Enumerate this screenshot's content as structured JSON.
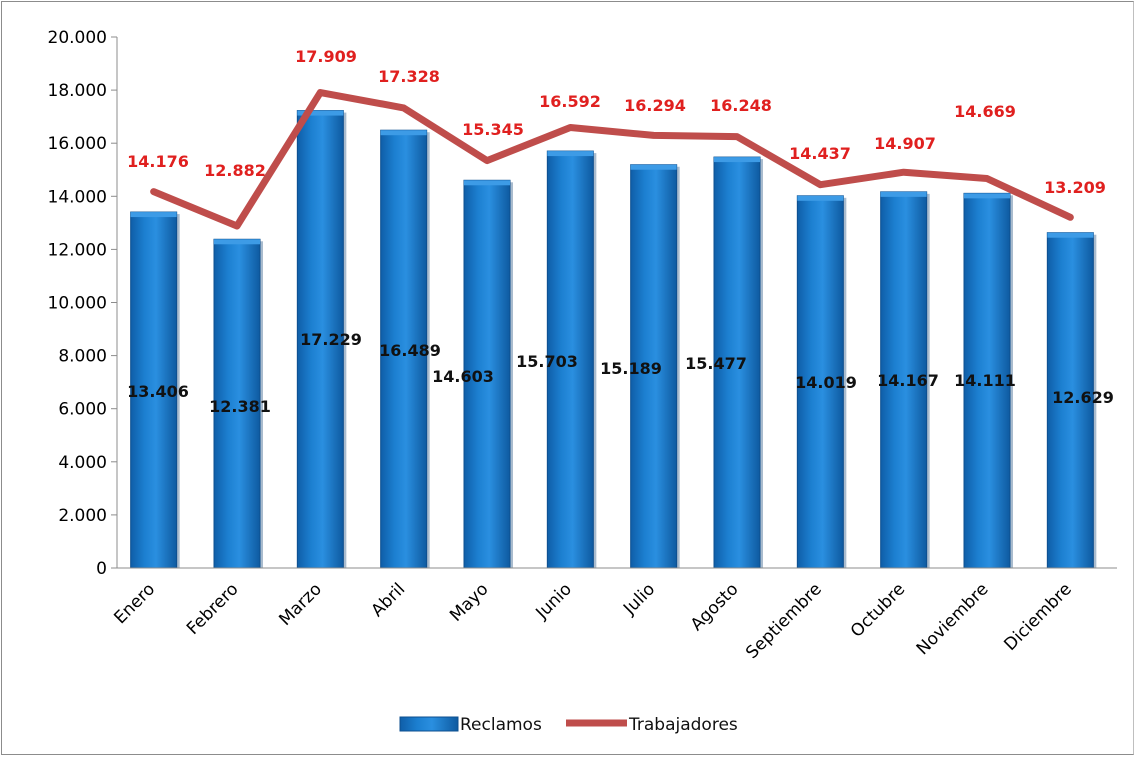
{
  "chart_data": {
    "type": "bar",
    "categories": [
      "Enero",
      "Febrero",
      "Marzo",
      "Abril",
      "Mayo",
      "Junio",
      "Julio",
      "Agosto",
      "Septiembre",
      "Octubre",
      "Noviembre",
      "Diciembre"
    ],
    "series": [
      {
        "name": "Reclamos",
        "type": "bar",
        "values": [
          13406,
          12381,
          17229,
          16489,
          14603,
          15703,
          15189,
          15477,
          14019,
          14167,
          14111,
          12629
        ],
        "labels": [
          "13.406",
          "12.381",
          "17.229",
          "16.489",
          "14.603",
          "15.703",
          "15.189",
          "15.477",
          "14.019",
          "14.167",
          "14.111",
          "12.629"
        ]
      },
      {
        "name": "Trabajadores",
        "type": "line",
        "values": [
          14176,
          12882,
          17909,
          17328,
          15345,
          16592,
          16294,
          16248,
          14437,
          14907,
          14669,
          13209
        ],
        "labels": [
          "14.176",
          "12.882",
          "17.909",
          "17.328",
          "15.345",
          "16.592",
          "16.294",
          "16.248",
          "14.437",
          "14.907",
          "14.669",
          "13.209"
        ]
      }
    ],
    "ylim": [
      0,
      20000
    ],
    "yticks": [
      0,
      2000,
      4000,
      6000,
      8000,
      10000,
      12000,
      14000,
      16000,
      18000,
      20000
    ],
    "ytick_labels": [
      "0",
      "2.000",
      "4.000",
      "6.000",
      "8.000",
      "10.000",
      "12.000",
      "14.000",
      "16.000",
      "18.000",
      "20.000"
    ],
    "legend_position": "bottom",
    "grid": false,
    "colors": {
      "bar": "#1a75c4",
      "bar_dark": "#0d4f8f",
      "line": "#bf4d4b",
      "line_label": "#e0201f"
    }
  }
}
